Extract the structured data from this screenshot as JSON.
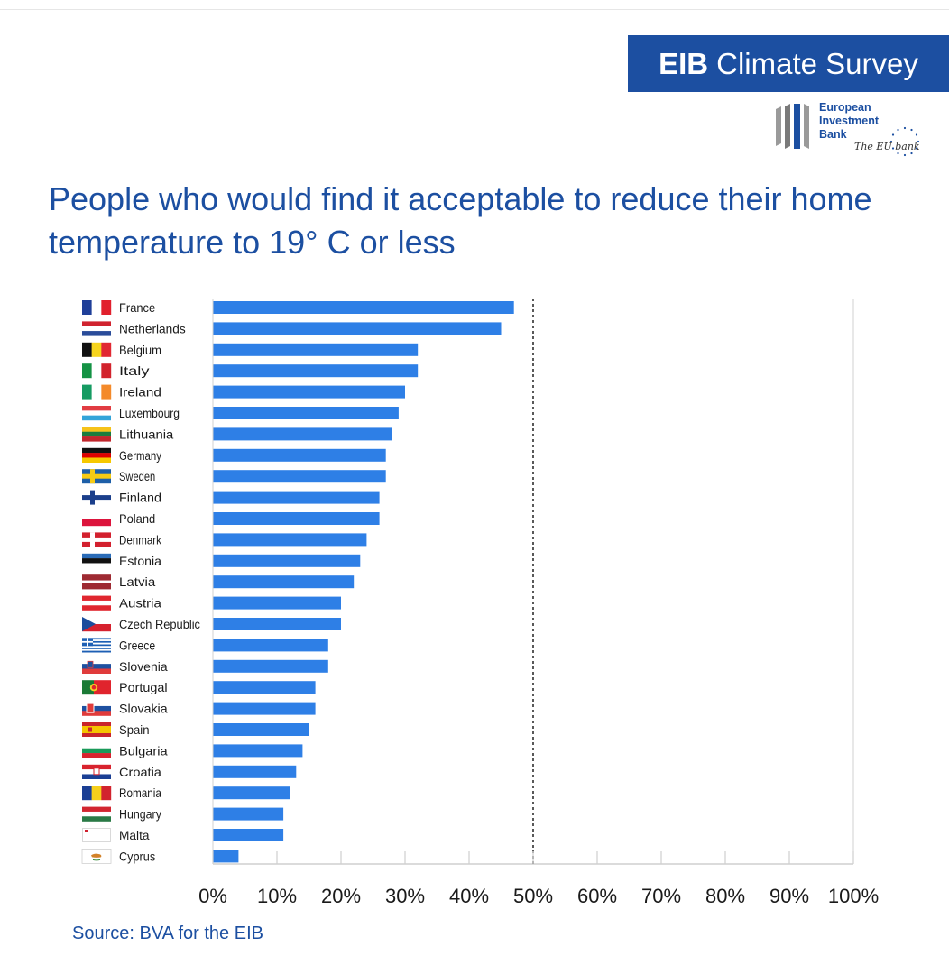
{
  "header": {
    "survey_brand": "EIB",
    "survey_name": "Climate Survey",
    "logo_name": "European\nInvestment\nBank",
    "logo_tagline": "The EU bank"
  },
  "colors": {
    "bar": "#2e7fe6",
    "brand_blue": "#1c4fa1",
    "text": "#1a1a1a"
  },
  "chart_data": {
    "type": "bar",
    "orientation": "horizontal",
    "title": "People who would find it acceptable to reduce their home temperature to 19° C or less",
    "categories": [
      "France",
      "Netherlands",
      "Belgium",
      "Italy",
      "Ireland",
      "Luxembourg",
      "Lithuania",
      "Germany",
      "Sweden",
      "Finland",
      "Poland",
      "Denmark",
      "Estonia",
      "Latvia",
      "Austria",
      "Czech Republic",
      "Greece",
      "Slovenia",
      "Portugal",
      "Slovakia",
      "Spain",
      "Bulgaria",
      "Croatia",
      "Romania",
      "Hungary",
      "Malta",
      "Cyprus"
    ],
    "flags": [
      "france-flag-icon",
      "netherlands-flag-icon",
      "belgium-flag-icon",
      "italy-flag-icon",
      "ireland-flag-icon",
      "luxembourg-flag-icon",
      "lithuania-flag-icon",
      "germany-flag-icon",
      "sweden-flag-icon",
      "finland-flag-icon",
      "poland-flag-icon",
      "denmark-flag-icon",
      "estonia-flag-icon",
      "latvia-flag-icon",
      "austria-flag-icon",
      "czech-republic-flag-icon",
      "greece-flag-icon",
      "slovenia-flag-icon",
      "portugal-flag-icon",
      "slovakia-flag-icon",
      "spain-flag-icon",
      "bulgaria-flag-icon",
      "croatia-flag-icon",
      "romania-flag-icon",
      "hungary-flag-icon",
      "malta-flag-icon",
      "cyprus-flag-icon"
    ],
    "values": [
      47,
      45,
      32,
      32,
      30,
      29,
      28,
      27,
      27,
      26,
      26,
      24,
      23,
      22,
      20,
      20,
      18,
      18,
      16,
      16,
      15,
      14,
      13,
      12,
      11,
      11,
      4
    ],
    "xlim": [
      0,
      100
    ],
    "xticks": [
      "0%",
      "10%",
      "20%",
      "30%",
      "40%",
      "50%",
      "60%",
      "70%",
      "80%",
      "90%",
      "100%"
    ],
    "reference_line": 50,
    "grid": false,
    "legend": "none"
  },
  "footer": {
    "source": "Source: BVA for the EIB"
  }
}
